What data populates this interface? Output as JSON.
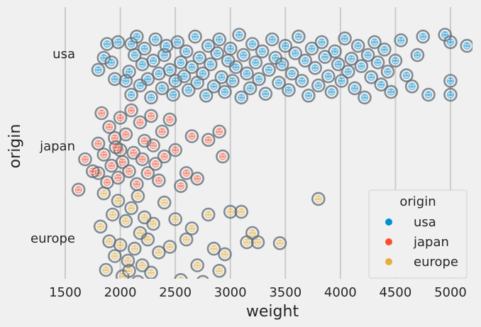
{
  "chart_data": {
    "type": "scatter",
    "title": "",
    "xlabel": "weight",
    "ylabel": "origin",
    "xlim": [
      1500,
      5200
    ],
    "xticks": [
      1500,
      2000,
      2500,
      3000,
      3500,
      4000,
      4500,
      5000
    ],
    "categories": [
      "usa",
      "japan",
      "europe"
    ],
    "grid": "vertical",
    "legend": {
      "title": "origin",
      "position": "lower-right"
    },
    "marker": "hollow circle with smiley face",
    "series": [
      {
        "name": "usa",
        "color": "#008fd5",
        "points": [
          [
            1800,
            0.18
          ],
          [
            1850,
            0.05
          ],
          [
            1880,
            -0.1
          ],
          [
            1920,
            0.1
          ],
          [
            1950,
            0.28
          ],
          [
            1980,
            -0.12
          ],
          [
            2050,
            0.3
          ],
          [
            2080,
            0.2
          ],
          [
            2100,
            0.45
          ],
          [
            2100,
            -0.1
          ],
          [
            2130,
            0.02
          ],
          [
            2150,
            -0.18
          ],
          [
            2180,
            0.35
          ],
          [
            2200,
            0.12
          ],
          [
            2220,
            -0.05
          ],
          [
            2250,
            0.28
          ],
          [
            2280,
            0.48
          ],
          [
            2300,
            0.08
          ],
          [
            2320,
            -0.15
          ],
          [
            2350,
            0.22
          ],
          [
            2380,
            0.38
          ],
          [
            2400,
            0.02
          ],
          [
            2420,
            -0.08
          ],
          [
            2450,
            0.18
          ],
          [
            2480,
            0.45
          ],
          [
            2500,
            0.3
          ],
          [
            2520,
            -0.12
          ],
          [
            2550,
            0.1
          ],
          [
            2580,
            0.25
          ],
          [
            2600,
            -0.02
          ],
          [
            2620,
            0.4
          ],
          [
            2650,
            0.15
          ],
          [
            2680,
            -0.18
          ],
          [
            2700,
            0.32
          ],
          [
            2720,
            0.05
          ],
          [
            2750,
            0.22
          ],
          [
            2780,
            0.46
          ],
          [
            2800,
            -0.08
          ],
          [
            2820,
            0.12
          ],
          [
            2850,
            0.36
          ],
          [
            2880,
            0.0
          ],
          [
            2900,
            -0.15
          ],
          [
            2920,
            0.26
          ],
          [
            2950,
            0.42
          ],
          [
            2980,
            0.08
          ],
          [
            3000,
            -0.05
          ],
          [
            3020,
            0.3
          ],
          [
            3050,
            0.15
          ],
          [
            3080,
            -0.2
          ],
          [
            3100,
            0.48
          ],
          [
            3120,
            0.02
          ],
          [
            3150,
            0.22
          ],
          [
            3180,
            0.38
          ],
          [
            3200,
            -0.1
          ],
          [
            3230,
            0.1
          ],
          [
            3260,
            0.28
          ],
          [
            3290,
            -0.02
          ],
          [
            3320,
            0.44
          ],
          [
            3350,
            0.18
          ],
          [
            3380,
            -0.15
          ],
          [
            3410,
            0.05
          ],
          [
            3440,
            0.32
          ],
          [
            3470,
            0.12
          ],
          [
            3500,
            -0.08
          ],
          [
            3530,
            0.4
          ],
          [
            3560,
            0.22
          ],
          [
            3590,
            0.0
          ],
          [
            3620,
            -0.18
          ],
          [
            3650,
            0.3
          ],
          [
            3680,
            0.08
          ],
          [
            3710,
            0.46
          ],
          [
            3740,
            -0.05
          ],
          [
            3770,
            0.16
          ],
          [
            3800,
            0.35
          ],
          [
            3830,
            -0.12
          ],
          [
            3860,
            0.04
          ],
          [
            3890,
            0.25
          ],
          [
            3920,
            0.42
          ],
          [
            3950,
            -0.02
          ],
          [
            3980,
            0.12
          ],
          [
            4010,
            0.3
          ],
          [
            4040,
            -0.16
          ],
          [
            4070,
            0.2
          ],
          [
            4100,
            0.06
          ],
          [
            4130,
            0.38
          ],
          [
            4160,
            -0.08
          ],
          [
            4190,
            0.14
          ],
          [
            4220,
            0.48
          ],
          [
            4250,
            0.02
          ],
          [
            4280,
            0.26
          ],
          [
            4310,
            -0.12
          ],
          [
            4340,
            0.1
          ],
          [
            4370,
            0.34
          ],
          [
            4400,
            -0.04
          ],
          [
            4430,
            0.2
          ],
          [
            4460,
            0.42
          ],
          [
            4500,
            0.08
          ],
          [
            4550,
            -0.14
          ],
          [
            4600,
            0.24
          ],
          [
            4650,
            0.36
          ],
          [
            4700,
            0.02
          ],
          [
            4750,
            -0.18
          ],
          [
            4800,
            0.45
          ],
          [
            4950,
            -0.2
          ],
          [
            5000,
            0.3
          ],
          [
            5000,
            0.45
          ],
          [
            5000,
            -0.12
          ],
          [
            5150,
            -0.08
          ]
        ]
      },
      {
        "name": "japan",
        "color": "#fc4f30",
        "points": [
          [
            1620,
            0.48
          ],
          [
            1680,
            0.15
          ],
          [
            1800,
            -0.02
          ],
          [
            1800,
            0.3
          ],
          [
            1830,
            -0.35
          ],
          [
            1850,
            0.1
          ],
          [
            1880,
            0.4
          ],
          [
            1900,
            -0.2
          ],
          [
            1920,
            0.22
          ],
          [
            1950,
            -0.08
          ],
          [
            1980,
            0.35
          ],
          [
            2000,
            -0.3
          ],
          [
            2000,
            0.05
          ],
          [
            2020,
            0.18
          ],
          [
            2050,
            -0.12
          ],
          [
            2080,
            0.28
          ],
          [
            2100,
            -0.38
          ],
          [
            2120,
            0.08
          ],
          [
            2150,
            0.42
          ],
          [
            2180,
            -0.25
          ],
          [
            2200,
            0.15
          ],
          [
            2220,
            -0.05
          ],
          [
            2250,
            0.3
          ],
          [
            2280,
            -0.32
          ],
          [
            2300,
            0.0
          ],
          [
            2320,
            0.2
          ],
          [
            2350,
            0.38
          ],
          [
            2380,
            -0.15
          ],
          [
            2400,
            0.12
          ],
          [
            2450,
            -0.28
          ],
          [
            2500,
            0.05
          ],
          [
            2550,
            0.44
          ],
          [
            2600,
            0.3
          ],
          [
            2650,
            -0.1
          ],
          [
            2700,
            0.36
          ],
          [
            2800,
            -0.06
          ],
          [
            2900,
            -0.15
          ],
          [
            2930,
            0.12
          ],
          [
            1750,
            0.28
          ],
          [
            1960,
            0.02
          ]
        ]
      },
      {
        "name": "europe",
        "color": "#e5ae38",
        "points": [
          [
            1820,
            -0.12
          ],
          [
            1850,
            -0.48
          ],
          [
            1870,
            0.35
          ],
          [
            1900,
            0.04
          ],
          [
            1930,
            -0.25
          ],
          [
            1950,
            0.2
          ],
          [
            1980,
            -0.4
          ],
          [
            2000,
            0.08
          ],
          [
            2020,
            0.42
          ],
          [
            2050,
            -0.18
          ],
          [
            2070,
            0.25
          ],
          [
            2100,
            -0.32
          ],
          [
            2130,
            0.12
          ],
          [
            2160,
            0.48
          ],
          [
            2180,
            -0.05
          ],
          [
            2200,
            0.3
          ],
          [
            2220,
            -0.22
          ],
          [
            2250,
            0.02
          ],
          [
            2280,
            0.38
          ],
          [
            2300,
            -0.15
          ],
          [
            2350,
            0.16
          ],
          [
            2400,
            -0.38
          ],
          [
            2450,
            0.1
          ],
          [
            2500,
            -0.2
          ],
          [
            2550,
            0.46
          ],
          [
            2600,
            0.02
          ],
          [
            2650,
            -0.1
          ],
          [
            2700,
            0.3
          ],
          [
            2750,
            0.48
          ],
          [
            2800,
            -0.25
          ],
          [
            2850,
            0.12
          ],
          [
            2900,
            0.36
          ],
          [
            2950,
            0.18
          ],
          [
            3000,
            -0.28
          ],
          [
            3100,
            -0.28
          ],
          [
            3150,
            0.05
          ],
          [
            3200,
            -0.05
          ],
          [
            3250,
            0.05
          ],
          [
            3450,
            0.06
          ],
          [
            3800,
            -0.42
          ],
          [
            2080,
            0.36
          ],
          [
            2160,
            -0.45
          ]
        ]
      }
    ]
  }
}
